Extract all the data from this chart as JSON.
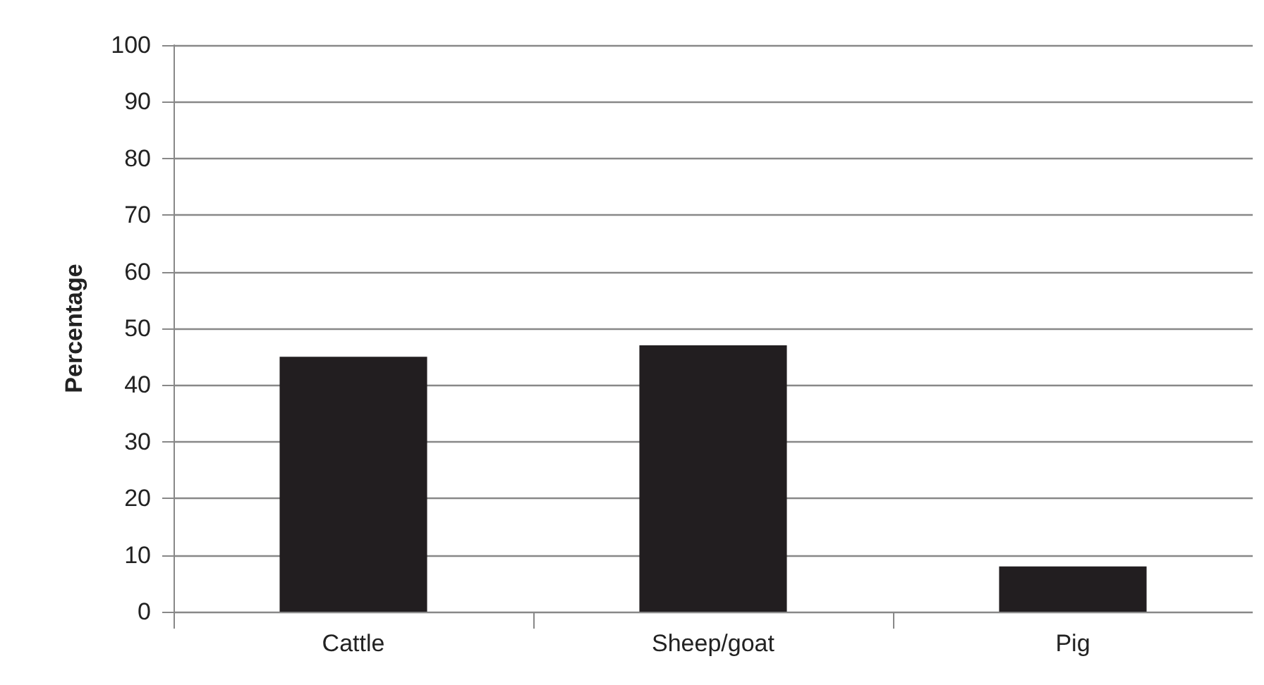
{
  "chart_data": {
    "type": "bar",
    "ylabel": "Percentage",
    "categories": [
      "Cattle",
      "Sheep/goat",
      "Pig"
    ],
    "values": [
      45,
      47,
      8
    ],
    "color": "#221e20",
    "ylim": [
      0,
      100
    ],
    "yticks": [
      0,
      10,
      20,
      30,
      40,
      50,
      60,
      70,
      80,
      90,
      100
    ],
    "grid": "y"
  }
}
